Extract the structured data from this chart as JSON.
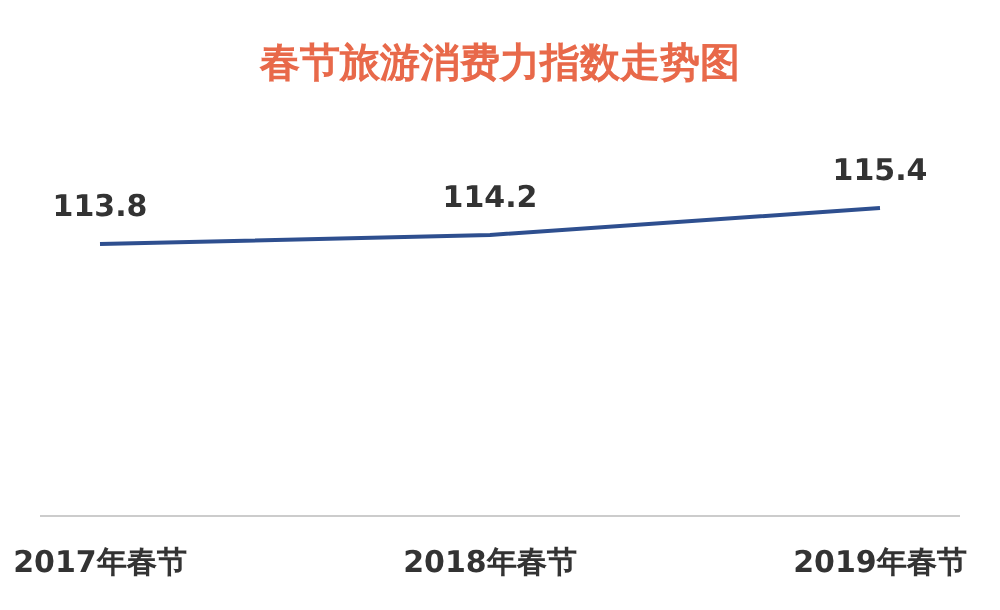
{
  "chart_data": {
    "type": "line",
    "title": "春节旅游消费力指数走势图",
    "categories": [
      "2017年春节",
      "2018年春节",
      "2019年春节"
    ],
    "series": [
      {
        "color": "#2e4f8f",
        "values": [
          113.8,
          114.2,
          115.4
        ]
      }
    ],
    "data_labels": true,
    "marker": "none",
    "line_style": "solid"
  }
}
